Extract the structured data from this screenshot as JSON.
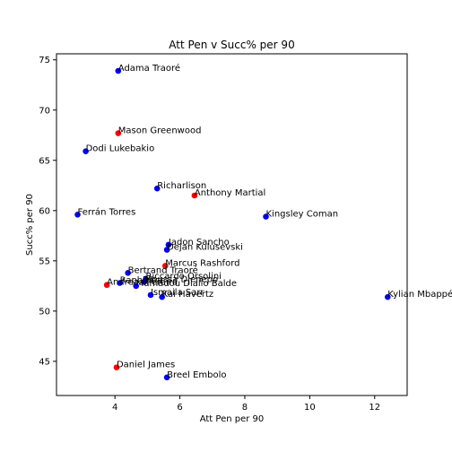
{
  "chart_data": {
    "type": "scatter",
    "title": "Att Pen v Succ% per 90",
    "xlabel": "Att Pen per 90",
    "ylabel": "Succ% per 90",
    "xlim": [
      2.2,
      13.0
    ],
    "ylim": [
      41.6,
      75.6
    ],
    "xticks": [
      4,
      6,
      8,
      10,
      12
    ],
    "yticks": [
      45,
      50,
      55,
      60,
      65,
      70,
      75
    ],
    "grid": false,
    "colors": {
      "blue": "#0000ff",
      "red": "#ff0000"
    },
    "points": [
      {
        "label": "Adama Traoré",
        "x": 4.1,
        "y": 73.9,
        "color": "blue"
      },
      {
        "label": "Mason Greenwood",
        "x": 4.1,
        "y": 67.7,
        "color": "red"
      },
      {
        "label": "Dodi Lukebakio",
        "x": 3.1,
        "y": 65.9,
        "color": "blue"
      },
      {
        "label": "Richarlison",
        "x": 5.3,
        "y": 62.2,
        "color": "blue"
      },
      {
        "label": "Anthony Martial",
        "x": 6.45,
        "y": 61.5,
        "color": "red"
      },
      {
        "label": "Ferrán Torres",
        "x": 2.85,
        "y": 59.6,
        "color": "blue"
      },
      {
        "label": "Kingsley Coman",
        "x": 8.65,
        "y": 59.4,
        "color": "blue"
      },
      {
        "label": "Jadon Sancho",
        "x": 5.65,
        "y": 56.6,
        "color": "blue"
      },
      {
        "label": "Dejan Kulusevski",
        "x": 5.6,
        "y": 56.1,
        "color": "blue"
      },
      {
        "label": "Marcus Rashford",
        "x": 5.55,
        "y": 54.5,
        "color": "red"
      },
      {
        "label": "Bertrand Traoré",
        "x": 4.4,
        "y": 53.8,
        "color": "blue"
      },
      {
        "label": "Riccardo Orsolini",
        "x": 4.95,
        "y": 53.2,
        "color": "blue"
      },
      {
        "label": "Raphinha",
        "x": 4.15,
        "y": 52.8,
        "color": "blue"
      },
      {
        "label": "Moussa Djenepo",
        "x": 4.9,
        "y": 52.9,
        "color": "blue"
      },
      {
        "label": "Andreas Pereira",
        "x": 3.75,
        "y": 52.6,
        "color": "red"
      },
      {
        "label": "Mamadou Diallo Balde",
        "x": 4.65,
        "y": 52.5,
        "color": "blue"
      },
      {
        "label": "Ismaila Sarr",
        "x": 5.1,
        "y": 51.6,
        "color": "blue"
      },
      {
        "label": "Kai Havertz",
        "x": 5.45,
        "y": 51.4,
        "color": "blue"
      },
      {
        "label": "Kylian Mbappé",
        "x": 12.4,
        "y": 51.4,
        "color": "blue"
      },
      {
        "label": "Daniel James",
        "x": 4.05,
        "y": 44.4,
        "color": "red"
      },
      {
        "label": "Breel Embolo",
        "x": 5.6,
        "y": 43.4,
        "color": "blue"
      }
    ]
  }
}
